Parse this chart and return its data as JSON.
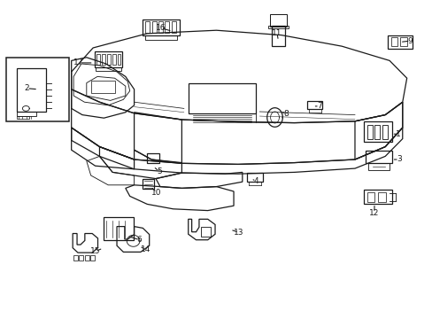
{
  "bg_color": "#ffffff",
  "line_color": "#1a1a1a",
  "fig_width": 4.89,
  "fig_height": 3.6,
  "dpi": 100,
  "label_positions": {
    "1": [
      0.92,
      0.57,
      0.875,
      0.565
    ],
    "2": [
      0.06,
      0.72,
      0.092,
      0.73
    ],
    "3": [
      0.92,
      0.49,
      0.88,
      0.49
    ],
    "4": [
      0.59,
      0.43,
      0.572,
      0.438
    ],
    "5": [
      0.365,
      0.46,
      0.355,
      0.475
    ],
    "6": [
      0.32,
      0.245,
      0.29,
      0.255
    ],
    "7": [
      0.735,
      0.665,
      0.718,
      0.665
    ],
    "8": [
      0.66,
      0.64,
      0.643,
      0.648
    ],
    "9": [
      0.945,
      0.87,
      0.92,
      0.865
    ],
    "10": [
      0.36,
      0.395,
      0.345,
      0.41
    ],
    "11": [
      0.638,
      0.895,
      0.638,
      0.87
    ],
    "12": [
      0.862,
      0.33,
      0.862,
      0.36
    ],
    "13": [
      0.55,
      0.27,
      0.528,
      0.278
    ],
    "14": [
      0.335,
      0.215,
      0.318,
      0.228
    ],
    "15": [
      0.218,
      0.21,
      0.235,
      0.222
    ],
    "16": [
      0.37,
      0.91,
      0.395,
      0.9
    ],
    "17": [
      0.18,
      0.8,
      0.212,
      0.8
    ]
  }
}
